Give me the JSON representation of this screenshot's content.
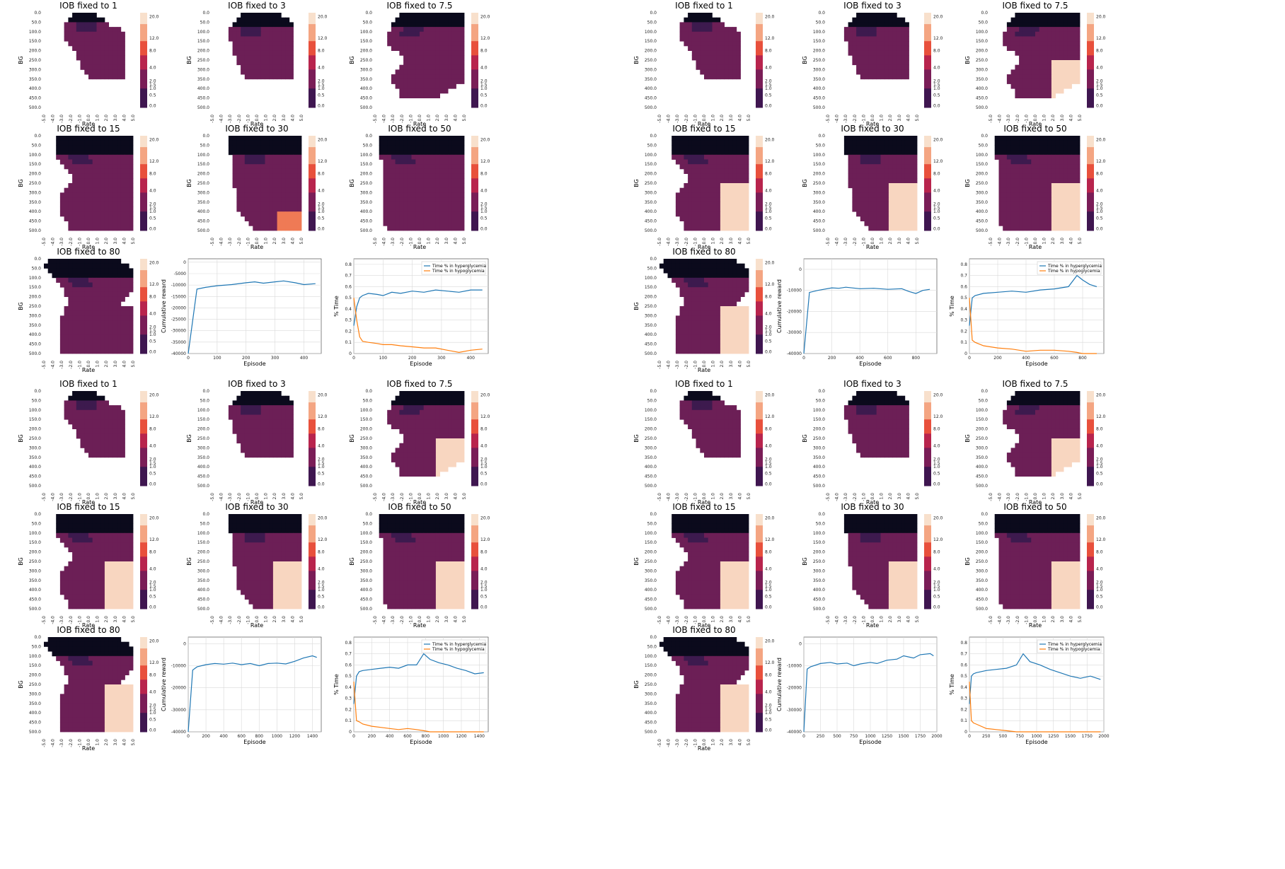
{
  "colors": {
    "black": "#0b0a1c",
    "dark_purple": "#3d1a4e",
    "purple": "#6c1f56",
    "light_peach": "#f8d6c0",
    "orange": "#ef7a55",
    "red": "#dd3b3b",
    "hyper": "#1f77b4",
    "hypo": "#ff7f0e",
    "grid": "#d9d9d9"
  },
  "axes": {
    "heatmap_y_ticks": [
      "0.0",
      "50.0",
      "100.0",
      "150.0",
      "200.0",
      "250.0",
      "300.0",
      "350.0",
      "400.0",
      "450.0",
      "500.0"
    ],
    "heatmap_x_ticks": [
      "-5.0",
      "-4.0",
      "-3.0",
      "-2.0",
      "-1.0",
      "0.0",
      "1.0",
      "2.0",
      "3.0",
      "4.0",
      "5.0"
    ],
    "colorbar_ticks": [
      "20.0",
      "12.0",
      "8.0",
      "4.0",
      "2.0",
      "1.5",
      "1.0",
      "0.5",
      "0.0"
    ],
    "heatmap_xlabel": "Rate",
    "heatmap_ylabel": "BG",
    "reward_ylabel": "Cumulative reward",
    "time_ylabel": "% Time",
    "episode_xlabel": "Episode",
    "legend": [
      "Time % in hyperglycemia",
      "Time % in hypoglycemia"
    ]
  },
  "chart_data": [
    {
      "panel": "top-left",
      "type": "heatmap_grid",
      "heatmaps": [
        {
          "title": "IOB fixed to 1",
          "pattern": "a"
        },
        {
          "title": "IOB fixed to 3",
          "pattern": "b"
        },
        {
          "title": "IOB fixed to 7.5",
          "pattern": "c"
        },
        {
          "title": "IOB fixed to 15",
          "pattern": "d"
        },
        {
          "title": "IOB fixed to 30",
          "pattern": "e"
        },
        {
          "title": "IOB fixed to 50",
          "pattern": "f"
        },
        {
          "title": "IOB fixed to 80",
          "pattern": "g"
        }
      ],
      "reward": {
        "type": "line",
        "xlim": [
          0,
          460
        ],
        "ylim": [
          -40000,
          1500
        ],
        "xticks": [
          0,
          100,
          200,
          300,
          400
        ],
        "yticks": [
          0,
          -5000,
          -10000,
          -15000,
          -20000,
          -25000,
          -30000,
          -35000,
          -40000
        ],
        "x": [
          0,
          30,
          60,
          100,
          150,
          200,
          230,
          260,
          300,
          330,
          370,
          400,
          440
        ],
        "y": [
          -40000,
          -11800,
          -11000,
          -10300,
          -9800,
          -9000,
          -8600,
          -9200,
          -8600,
          -8200,
          -9000,
          -9800,
          -9400
        ]
      },
      "time": {
        "type": "line",
        "xlim": [
          0,
          460
        ],
        "ylim": [
          0,
          0.85
        ],
        "xticks": [
          0,
          100,
          200,
          300,
          400
        ],
        "yticks": [
          0.0,
          0.1,
          0.2,
          0.3,
          0.4,
          0.5,
          0.6,
          0.7,
          0.8
        ],
        "x": [
          0,
          10,
          20,
          30,
          50,
          80,
          100,
          130,
          160,
          200,
          240,
          280,
          320,
          360,
          400,
          440
        ],
        "hyper": [
          0.25,
          0.42,
          0.5,
          0.52,
          0.54,
          0.53,
          0.52,
          0.55,
          0.54,
          0.56,
          0.55,
          0.57,
          0.56,
          0.55,
          0.57,
          0.57
        ],
        "hypo": [
          0.5,
          0.3,
          0.15,
          0.11,
          0.1,
          0.09,
          0.08,
          0.08,
          0.07,
          0.06,
          0.05,
          0.05,
          0.03,
          0.01,
          0.03,
          0.04
        ]
      }
    },
    {
      "panel": "top-right",
      "type": "heatmap_grid",
      "heatmaps": [
        {
          "title": "IOB fixed to 1",
          "pattern": "a"
        },
        {
          "title": "IOB fixed to 3",
          "pattern": "b"
        },
        {
          "title": "IOB fixed to 7.5",
          "pattern": "c"
        },
        {
          "title": "IOB fixed to 15",
          "pattern": "d"
        },
        {
          "title": "IOB fixed to 30",
          "pattern": "e"
        },
        {
          "title": "IOB fixed to 50",
          "pattern": "f"
        },
        {
          "title": "IOB fixed to 80",
          "pattern": "g"
        }
      ],
      "reward": {
        "type": "line",
        "xlim": [
          0,
          950
        ],
        "ylim": [
          -40000,
          5000
        ],
        "xticks": [
          0,
          200,
          400,
          600,
          800
        ],
        "yticks": [
          0,
          -10000,
          -20000,
          -30000,
          -40000
        ],
        "x": [
          0,
          40,
          100,
          200,
          250,
          300,
          400,
          500,
          600,
          700,
          750,
          800,
          850,
          900
        ],
        "y": [
          -40000,
          -11000,
          -10000,
          -8800,
          -9000,
          -8500,
          -9200,
          -9000,
          -9500,
          -9200,
          -10500,
          -11500,
          -10000,
          -9500
        ]
      },
      "time": {
        "type": "line",
        "xlim": [
          0,
          950
        ],
        "ylim": [
          0,
          0.85
        ],
        "xticks": [
          0,
          200,
          400,
          600,
          800
        ],
        "yticks": [
          0.0,
          0.1,
          0.2,
          0.3,
          0.4,
          0.5,
          0.6,
          0.7,
          0.8
        ],
        "x": [
          0,
          20,
          40,
          100,
          200,
          300,
          400,
          500,
          600,
          700,
          760,
          800,
          850,
          900
        ],
        "hyper": [
          0.25,
          0.5,
          0.52,
          0.54,
          0.55,
          0.56,
          0.55,
          0.57,
          0.58,
          0.6,
          0.7,
          0.66,
          0.62,
          0.6
        ],
        "hypo": [
          0.5,
          0.12,
          0.1,
          0.07,
          0.05,
          0.04,
          0.02,
          0.03,
          0.03,
          0.02,
          0.01,
          0.0,
          0.0,
          0.0
        ]
      }
    },
    {
      "panel": "bottom-left",
      "type": "heatmap_grid",
      "heatmaps": [
        {
          "title": "IOB fixed to 1",
          "pattern": "a"
        },
        {
          "title": "IOB fixed to 3",
          "pattern": "b"
        },
        {
          "title": "IOB fixed to 7.5",
          "pattern": "c"
        },
        {
          "title": "IOB fixed to 15",
          "pattern": "d"
        },
        {
          "title": "IOB fixed to 30",
          "pattern": "e"
        },
        {
          "title": "IOB fixed to 50",
          "pattern": "f"
        },
        {
          "title": "IOB fixed to 80",
          "pattern": "g"
        }
      ],
      "reward": {
        "type": "line",
        "xlim": [
          0,
          1500
        ],
        "ylim": [
          -40000,
          3000
        ],
        "xticks": [
          0,
          200,
          400,
          600,
          800,
          1000,
          1200,
          1400
        ],
        "yticks": [
          0,
          -10000,
          -20000,
          -30000,
          -40000
        ],
        "x": [
          0,
          50,
          100,
          200,
          300,
          400,
          500,
          600,
          700,
          800,
          900,
          1000,
          1100,
          1200,
          1300,
          1400,
          1450
        ],
        "y": [
          -40000,
          -12000,
          -10500,
          -9500,
          -9000,
          -9300,
          -8800,
          -9500,
          -9000,
          -10000,
          -9000,
          -8800,
          -9200,
          -8000,
          -6500,
          -5500,
          -6200
        ]
      },
      "time": {
        "type": "line",
        "xlim": [
          0,
          1500
        ],
        "ylim": [
          0,
          0.85
        ],
        "xticks": [
          0,
          200,
          400,
          600,
          800,
          1000,
          1200,
          1400
        ],
        "yticks": [
          0.0,
          0.1,
          0.2,
          0.3,
          0.4,
          0.5,
          0.6,
          0.7,
          0.8
        ],
        "x": [
          0,
          30,
          60,
          100,
          200,
          300,
          400,
          500,
          600,
          700,
          780,
          850,
          950,
          1050,
          1150,
          1250,
          1350,
          1450
        ],
        "hyper": [
          0.25,
          0.5,
          0.54,
          0.55,
          0.56,
          0.57,
          0.58,
          0.57,
          0.6,
          0.6,
          0.7,
          0.65,
          0.62,
          0.6,
          0.57,
          0.55,
          0.52,
          0.53
        ],
        "hypo": [
          0.45,
          0.1,
          0.09,
          0.07,
          0.05,
          0.04,
          0.03,
          0.02,
          0.03,
          0.02,
          0.01,
          0.0,
          0.0,
          0.0,
          0.0,
          0.0,
          0.0,
          0.0
        ]
      }
    },
    {
      "panel": "bottom-right",
      "type": "heatmap_grid",
      "heatmaps": [
        {
          "title": "IOB fixed to 1",
          "pattern": "a"
        },
        {
          "title": "IOB fixed to 3",
          "pattern": "b"
        },
        {
          "title": "IOB fixed to 7.5",
          "pattern": "c"
        },
        {
          "title": "IOB fixed to 15",
          "pattern": "d"
        },
        {
          "title": "IOB fixed to 30",
          "pattern": "e"
        },
        {
          "title": "IOB fixed to 50",
          "pattern": "f"
        },
        {
          "title": "IOB fixed to 80",
          "pattern": "g"
        }
      ],
      "reward": {
        "type": "line",
        "xlim": [
          0,
          2000
        ],
        "ylim": [
          -40000,
          3000
        ],
        "xticks": [
          0,
          250,
          500,
          750,
          1000,
          1250,
          1500,
          1750,
          2000
        ],
        "yticks": [
          0,
          -10000,
          -20000,
          -30000,
          -40000
        ],
        "x": [
          0,
          50,
          100,
          250,
          400,
          500,
          650,
          750,
          850,
          1000,
          1100,
          1250,
          1400,
          1500,
          1650,
          1750,
          1900,
          1950
        ],
        "y": [
          -40000,
          -11500,
          -10500,
          -9000,
          -8500,
          -9200,
          -8800,
          -10000,
          -9200,
          -8500,
          -9000,
          -7500,
          -7000,
          -5500,
          -6500,
          -5000,
          -4500,
          -5500
        ]
      },
      "time": {
        "type": "line",
        "xlim": [
          0,
          2000
        ],
        "ylim": [
          0,
          0.85
        ],
        "xticks": [
          0,
          250,
          500,
          750,
          1000,
          1250,
          1500,
          1750,
          2000
        ],
        "yticks": [
          0.0,
          0.1,
          0.2,
          0.3,
          0.4,
          0.5,
          0.6,
          0.7,
          0.8
        ],
        "x": [
          0,
          30,
          60,
          100,
          250,
          400,
          550,
          700,
          800,
          900,
          1050,
          1200,
          1350,
          1500,
          1650,
          1800,
          1950
        ],
        "hyper": [
          0.25,
          0.5,
          0.52,
          0.53,
          0.55,
          0.56,
          0.57,
          0.6,
          0.7,
          0.63,
          0.6,
          0.56,
          0.53,
          0.5,
          0.48,
          0.5,
          0.47
        ],
        "hypo": [
          0.45,
          0.1,
          0.08,
          0.07,
          0.03,
          0.02,
          0.01,
          0.0,
          0.0,
          0.0,
          0.0,
          0.0,
          0.0,
          0.0,
          0.0,
          0.0,
          0.0
        ]
      }
    }
  ]
}
